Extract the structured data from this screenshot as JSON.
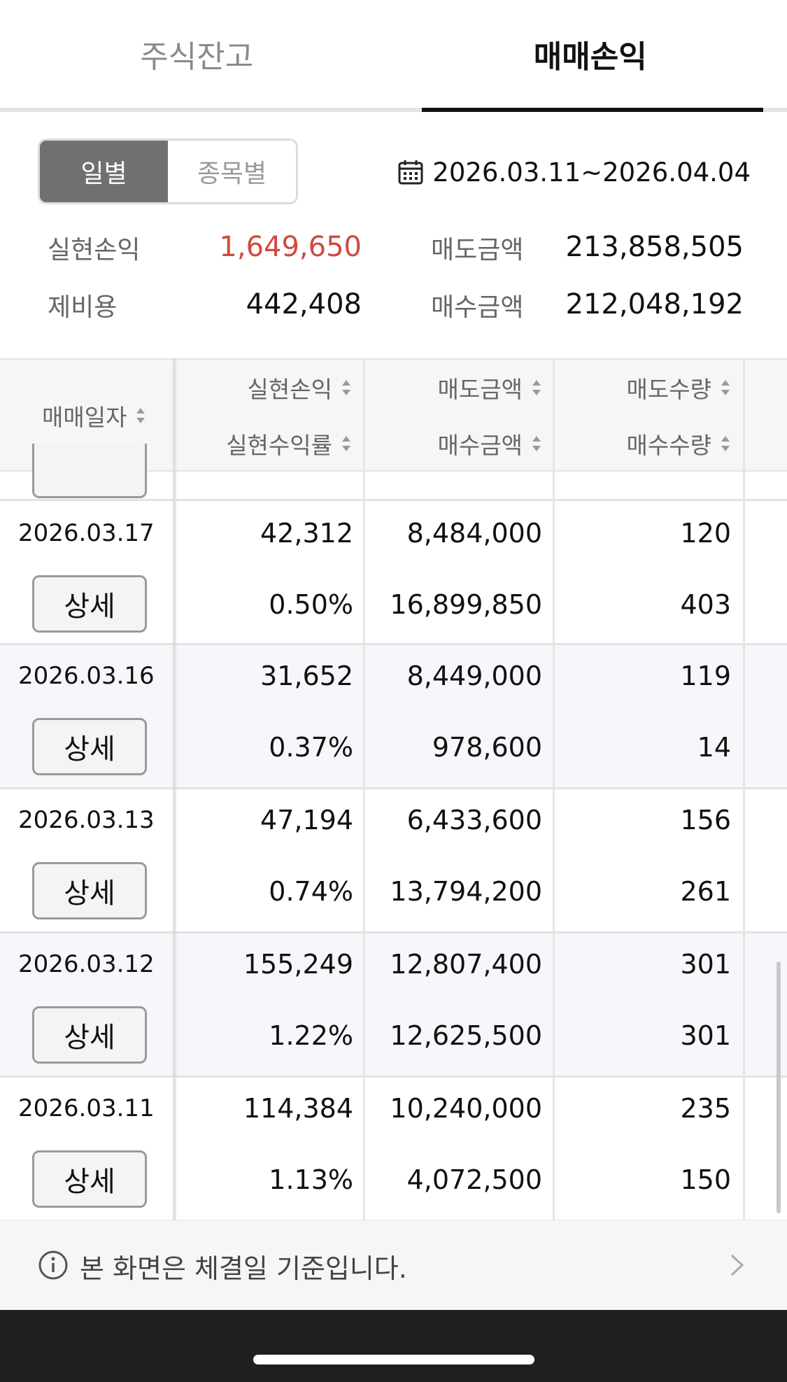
{
  "tabs": [
    {
      "label": "주식잔고",
      "active": false
    },
    {
      "label": "매매손익",
      "active": true
    }
  ],
  "segment": {
    "daily": "일별",
    "by_stock": "종목별"
  },
  "date_range": "2026.03.11~2026.04.04",
  "summary": {
    "realized_pl_label": "실현손익",
    "realized_pl": "1,649,650",
    "sell_amount_label": "매도금액",
    "sell_amount": "213,858,505",
    "fees_label": "제비용",
    "fees": "442,408",
    "buy_amount_label": "매수금액",
    "buy_amount": "212,048,192"
  },
  "table": {
    "headers": {
      "trade_date": "매매일자",
      "realized_pl": "실현손익",
      "realized_return": "실현수익률",
      "sell_amount": "매도금액",
      "buy_amount": "매수금액",
      "sell_qty": "매도수량",
      "buy_qty": "매수수량"
    },
    "detail_label": "상세",
    "rows": [
      {
        "date": "2026.03.17",
        "pl": "42,312",
        "rate": "0.50%",
        "sell_amt": "8,484,000",
        "buy_amt": "16,899,850",
        "sell_qty": "120",
        "buy_qty": "403"
      },
      {
        "date": "2026.03.16",
        "pl": "31,652",
        "rate": "0.37%",
        "sell_amt": "8,449,000",
        "buy_amt": "978,600",
        "sell_qty": "119",
        "buy_qty": "14"
      },
      {
        "date": "2026.03.13",
        "pl": "47,194",
        "rate": "0.74%",
        "sell_amt": "6,433,600",
        "buy_amt": "13,794,200",
        "sell_qty": "156",
        "buy_qty": "261"
      },
      {
        "date": "2026.03.12",
        "pl": "155,249",
        "rate": "1.22%",
        "sell_amt": "12,807,400",
        "buy_amt": "12,625,500",
        "sell_qty": "301",
        "buy_qty": "301"
      },
      {
        "date": "2026.03.11",
        "pl": "114,384",
        "rate": "1.13%",
        "sell_amt": "10,240,000",
        "buy_amt": "4,072,500",
        "sell_qty": "235",
        "buy_qty": "150"
      }
    ]
  },
  "note": {
    "text": "본 화면은 체결일 기준입니다."
  },
  "colors": {
    "profit_red": "#cf4a3f",
    "active_segment": "#707070"
  },
  "icons": {
    "calendar": "calendar-icon",
    "info": "info-icon",
    "chevron": "chevron-right-icon"
  }
}
